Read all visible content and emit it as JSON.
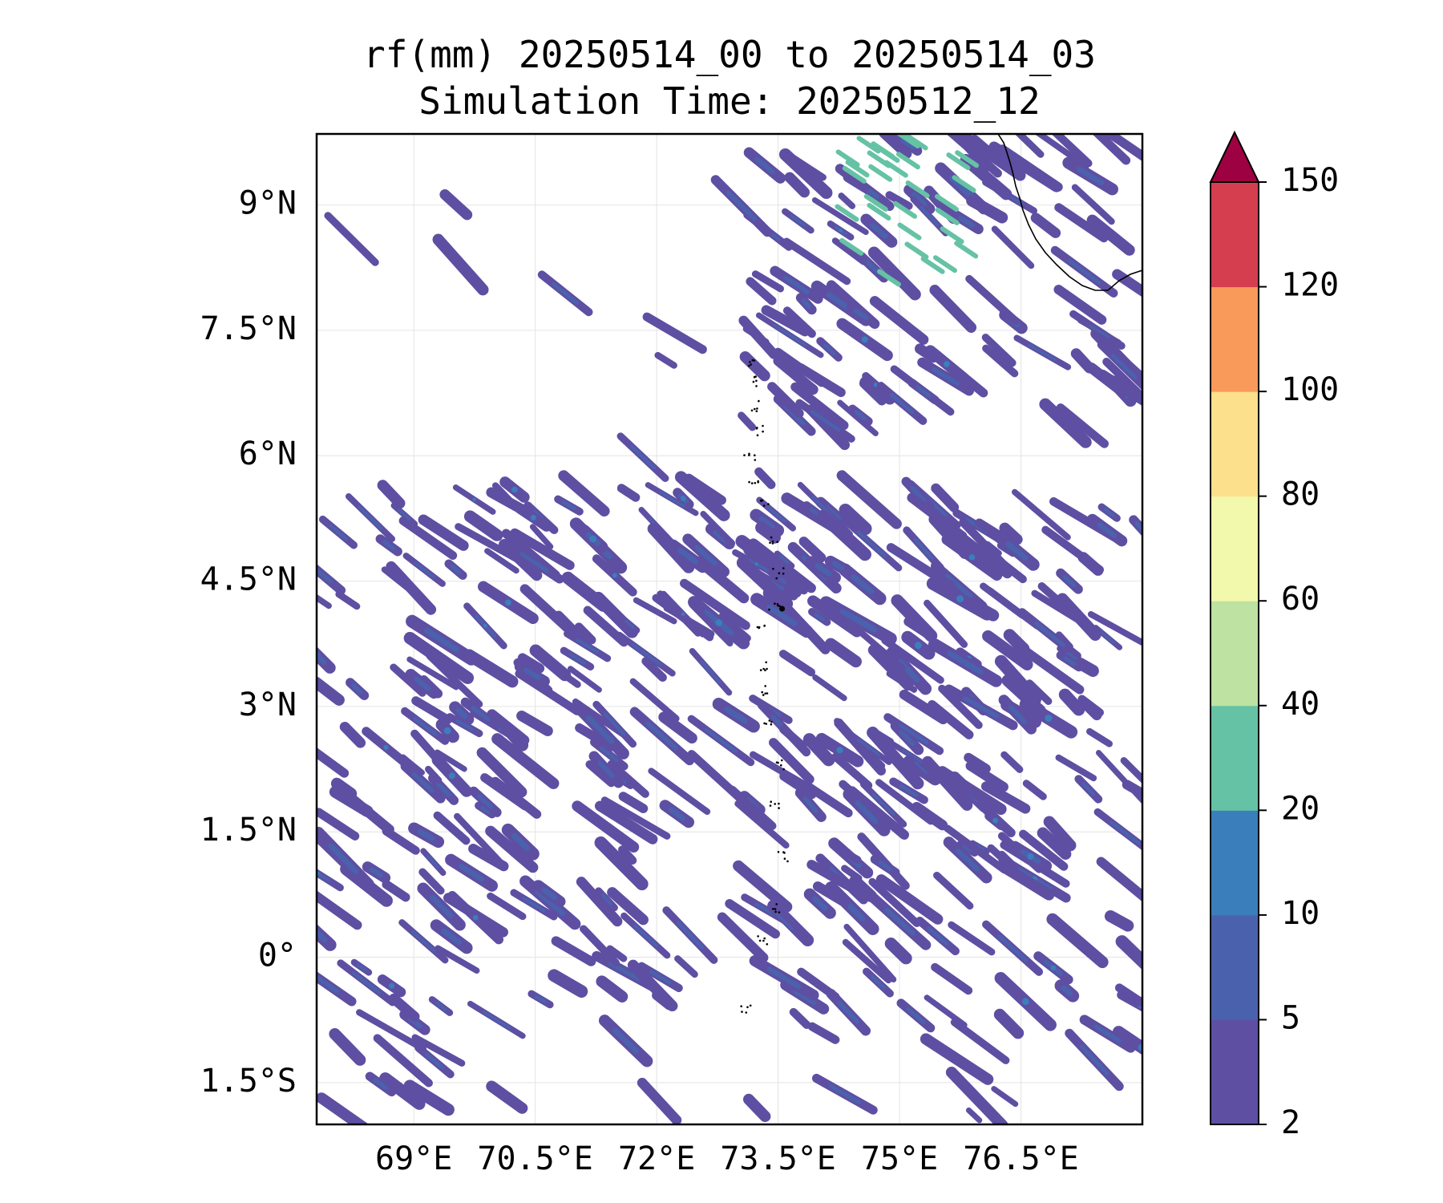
{
  "title_line1": "rf(mm) 20250514_00 to 20250514_03",
  "title_line2": "Simulation Time: 20250512_12",
  "map": {
    "lon_range": [
      67.8,
      78.0
    ],
    "lat_range": [
      -2.0,
      9.85
    ],
    "yticks": [
      {
        "value": 9.0,
        "label": "9°N"
      },
      {
        "value": 7.5,
        "label": "7.5°N"
      },
      {
        "value": 6.0,
        "label": "6°N"
      },
      {
        "value": 4.5,
        "label": "4.5°N"
      },
      {
        "value": 3.0,
        "label": "3°N"
      },
      {
        "value": 1.5,
        "label": "1.5°N"
      },
      {
        "value": 0.0,
        "label": "0°"
      },
      {
        "value": -1.5,
        "label": "1.5°S"
      }
    ],
    "xticks": [
      {
        "value": 69.0,
        "label": "69°E"
      },
      {
        "value": 70.5,
        "label": "70.5°E"
      },
      {
        "value": 72.0,
        "label": "72°E"
      },
      {
        "value": 73.5,
        "label": "73.5°E"
      },
      {
        "value": 75.0,
        "label": "75°E"
      },
      {
        "value": 76.5,
        "label": "76.5°E"
      }
    ],
    "grid": true
  },
  "colorbar": {
    "levels": [
      2,
      5,
      10,
      20,
      40,
      60,
      80,
      100,
      120,
      150
    ],
    "labels": [
      "2",
      "5",
      "10",
      "20",
      "40",
      "60",
      "80",
      "100",
      "120",
      "150"
    ],
    "colors": [
      "#5e4fa2",
      "#4a62ad",
      "#3a7fbc",
      "#66c2a5",
      "#bde2a1",
      "#f2f8ac",
      "#fce08b",
      "#f9995a",
      "#d53e4f"
    ],
    "extend_color": "#9e0142",
    "extend": "max"
  },
  "colors": {
    "rain_light": "#5e4fa2",
    "rain_mid": "#4a62ad",
    "rain_heavy": "#3a7fbc",
    "rain_max": "#66c2a5",
    "coastline": "#000000"
  }
}
